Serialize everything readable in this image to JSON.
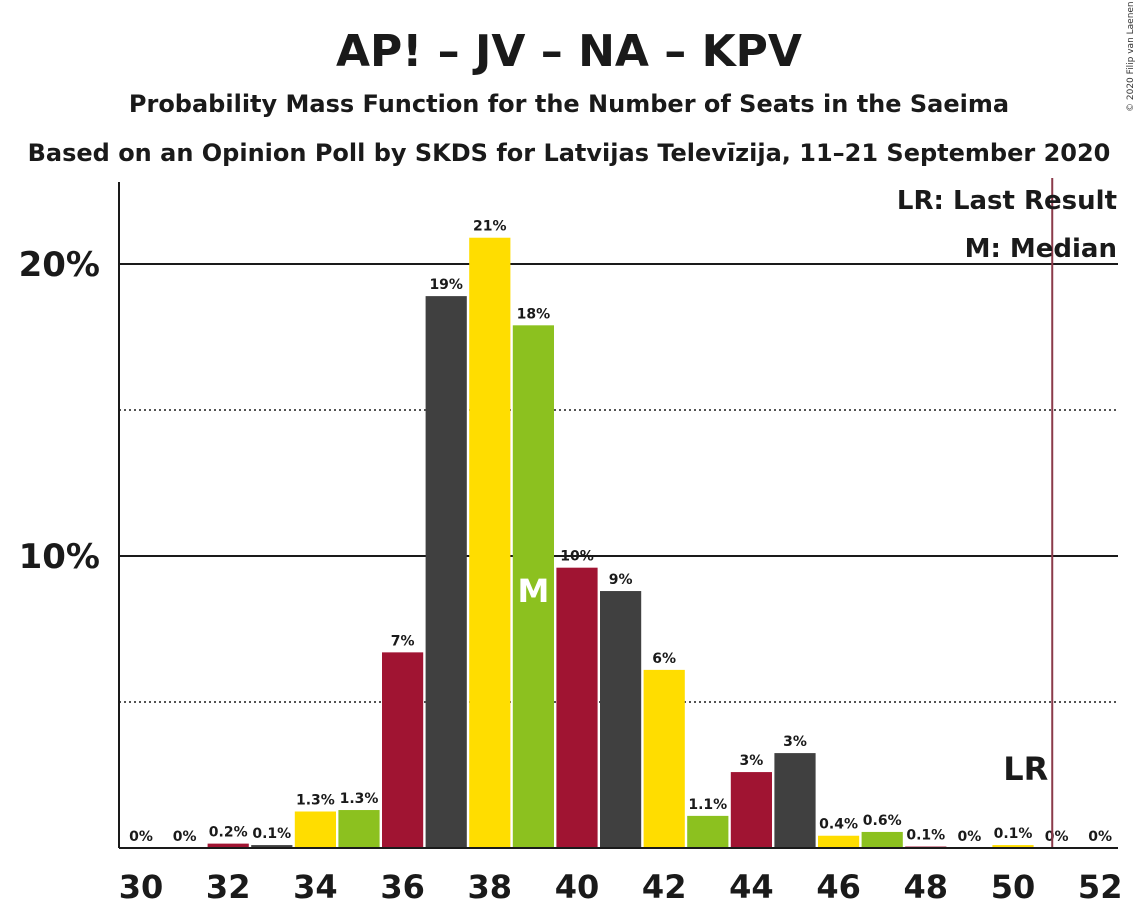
{
  "chart_data": {
    "type": "bar",
    "title": "AP! – JV – NA – KPV",
    "subtitle1": "Probability Mass Function for the Number of Seats in the Saeima",
    "subtitle2": "Based on an Opinion Poll by SKDS for Latvijas Televīzija, 11–21 September 2020",
    "copyright": "© 2020 Filip van Laenen",
    "legend": {
      "lr": "LR: Last Result",
      "median": "M: Median",
      "placement": "top-right"
    },
    "ylim": [
      0,
      22.8
    ],
    "yticks": [
      {
        "value": 10,
        "label": "10%"
      },
      {
        "value": 20,
        "label": "20%"
      }
    ],
    "dotted_gridlines": [
      5,
      15
    ],
    "xticks": [
      "30",
      "32",
      "34",
      "36",
      "38",
      "40",
      "42",
      "44",
      "46",
      "48",
      "50",
      "52"
    ],
    "x": [
      30,
      31,
      32,
      33,
      34,
      35,
      36,
      37,
      38,
      39,
      40,
      41,
      42,
      43,
      44,
      45,
      46,
      47,
      48,
      49,
      50,
      51,
      52
    ],
    "values": [
      0,
      0,
      0.2,
      0.1,
      1.3,
      1.3,
      7,
      19,
      21,
      18,
      10,
      9,
      6,
      1.1,
      3,
      3,
      0.4,
      0.6,
      0.1,
      0,
      0.1,
      0,
      0
    ],
    "plot_values": [
      0,
      0,
      0.15,
      0.1,
      1.25,
      1.3,
      6.7,
      18.9,
      20.9,
      17.9,
      9.6,
      8.8,
      6.1,
      1.1,
      2.6,
      3.25,
      0.42,
      0.55,
      0.05,
      0,
      0.1,
      0,
      0
    ],
    "labels": [
      "0%",
      "0%",
      "0.2%",
      "0.1%",
      "1.3%",
      "1.3%",
      "7%",
      "19%",
      "21%",
      "18%",
      "10%",
      "9%",
      "6%",
      "1.1%",
      "3%",
      "3%",
      "0.4%",
      "0.6%",
      "0.1%",
      "0%",
      "0.1%",
      "0%",
      "0%"
    ],
    "colors": [
      "#FFDD00",
      "#8CC11F",
      "#A01432",
      "#404040"
    ],
    "median": {
      "seat": 39,
      "label": "M"
    },
    "last_result": {
      "seat": 50.9,
      "label": "LR",
      "color": "#8B3A4A"
    },
    "grid": true
  }
}
